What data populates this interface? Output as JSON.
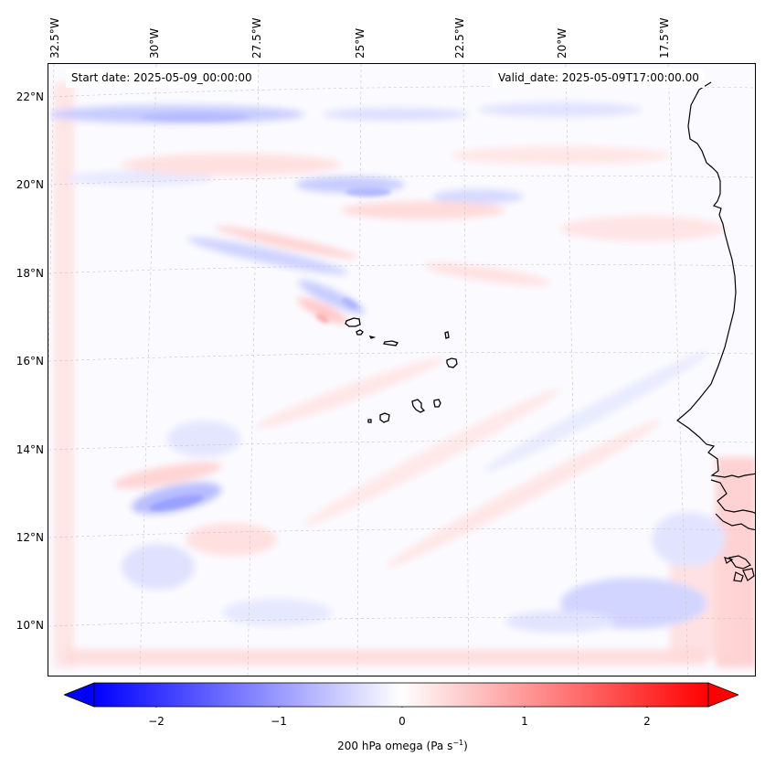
{
  "map": {
    "lon_labels": [
      "32.5°W",
      "30°W",
      "27.5°W",
      "25°W",
      "22.5°W",
      "20°W",
      "17.5°W"
    ],
    "lat_labels": [
      "22°N",
      "20°N",
      "18°N",
      "16°N",
      "14°N",
      "12°N",
      "10°N"
    ],
    "start_date": "Start date: 2025-05-09_00:00:00",
    "valid_date": "Valid_date: 2025-05-09T17:00:00.00",
    "colors": {
      "negative": "#0000ff",
      "positive": "#ff0000",
      "neutral": "#ffffff",
      "coast": "#000000",
      "grid": "#c8c8c8"
    }
  },
  "colorbar": {
    "ticks": [
      "−2",
      "−1",
      "0",
      "1",
      "2"
    ],
    "label": "200 hPa omega (Pa s",
    "label_exp": "−1",
    "label_close": ")"
  }
}
